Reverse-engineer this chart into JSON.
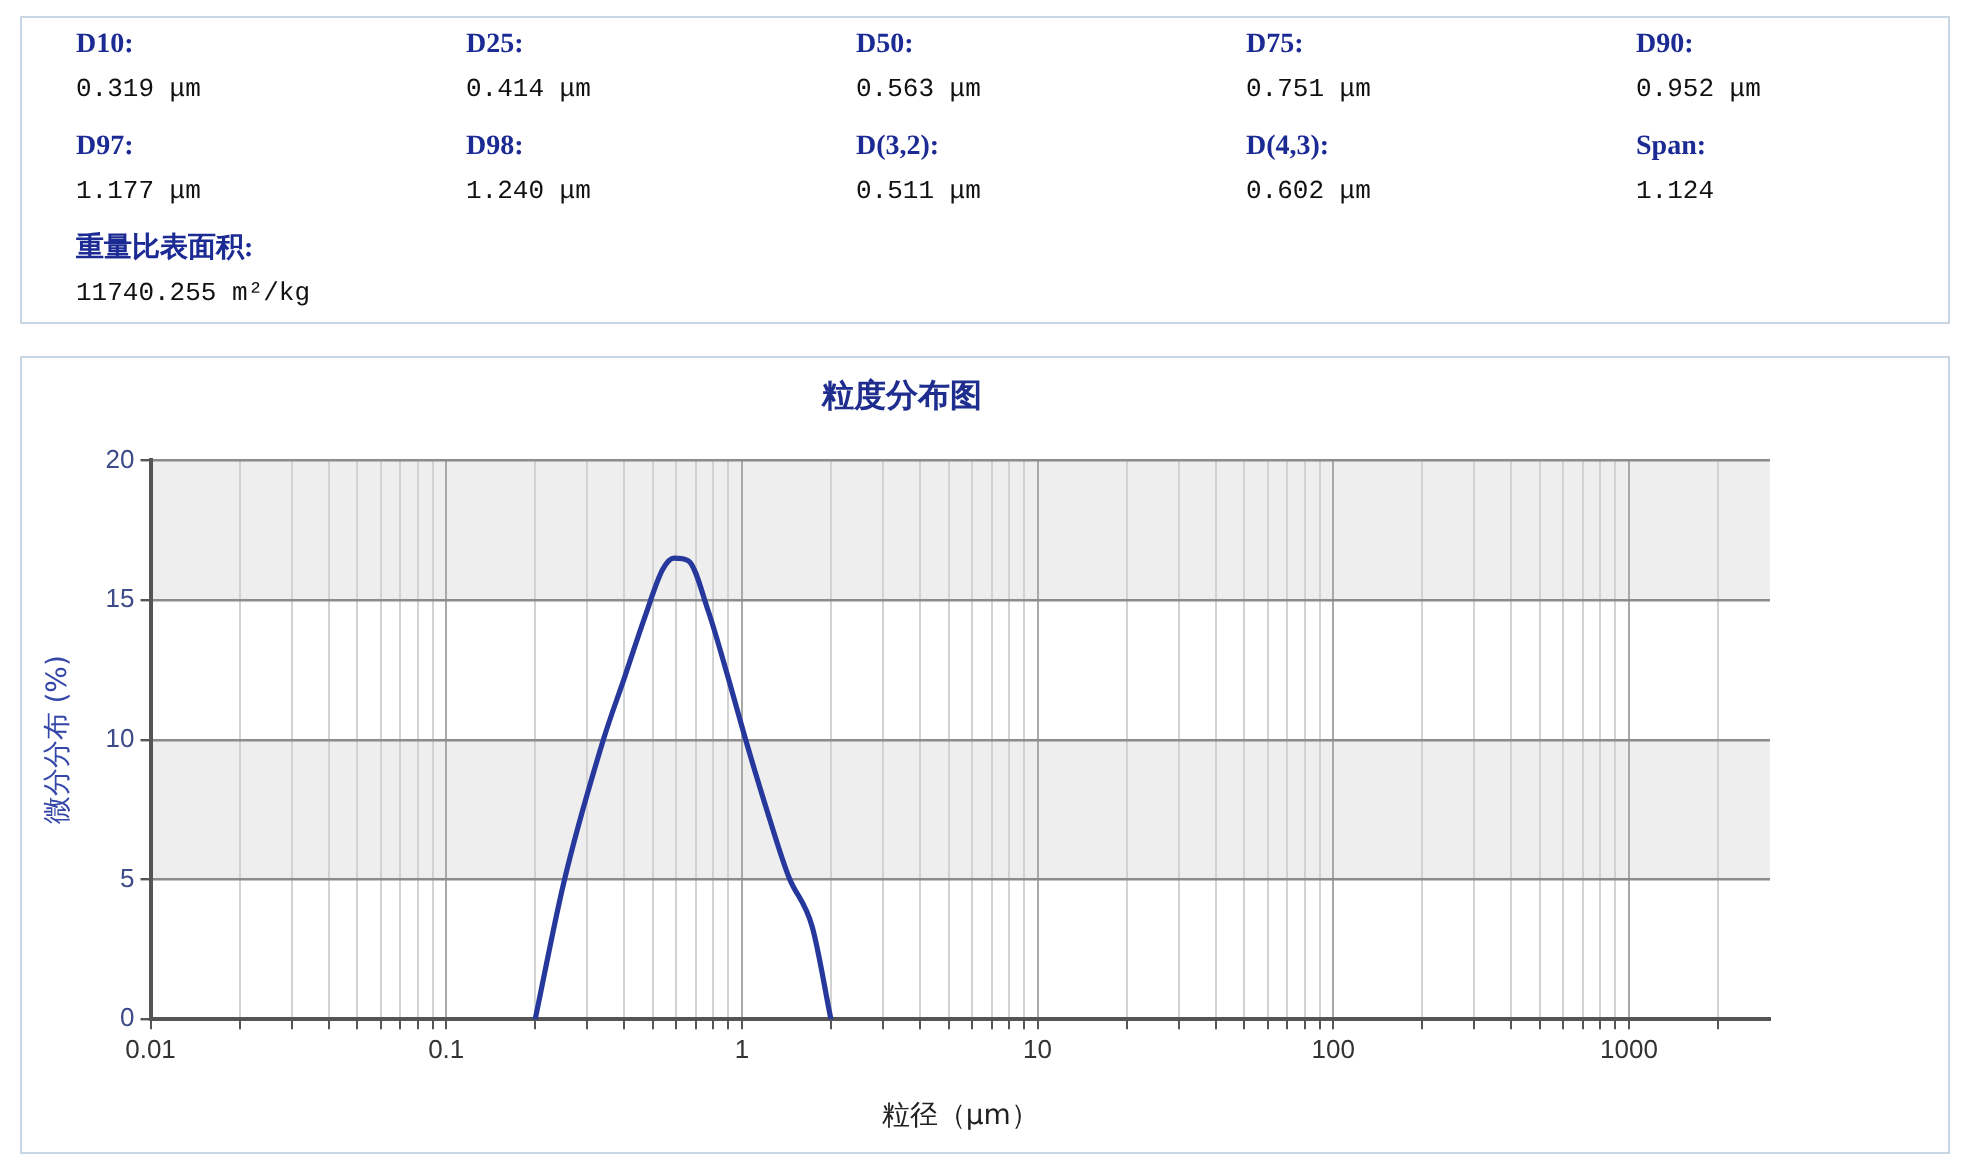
{
  "chart_data": [
    {
      "type": "other",
      "annotations": [
        "D10:",
        "0.319 μm",
        "D25:",
        "0.414 μm",
        "D50:",
        "0.563 μm",
        "D75:",
        "0.751 μm",
        "D90:",
        "0.952 μm",
        "D97:",
        "1.177 μm",
        "D98:",
        "1.240 μm",
        "D(3,2):",
        "0.511 μm",
        "D(4,3):",
        "0.602 μm",
        "Span:",
        "1.124",
        "重量比表面积:",
        "11740.255 m²/kg"
      ]
    },
    {
      "type": "line",
      "title": "粒度分布图",
      "xlabel": "粒径（μm）",
      "ylabel": "微分分布 (%)",
      "x": [
        0.2,
        0.25,
        0.34,
        0.4,
        0.47,
        0.54,
        0.59,
        0.66,
        0.77,
        0.9,
        1.03,
        1.23,
        1.44,
        1.73,
        2
      ],
      "values": [
        0,
        4.9,
        10,
        12.2,
        14.4,
        16.1,
        16.5,
        16.4,
        14.6,
        12.2,
        10,
        7.3,
        5.1,
        3.3,
        0
      ],
      "color": "#26389c",
      "marker": "none",
      "line_style": "solid",
      "log": "x",
      "grid": true,
      "legend": false,
      "xlim": [
        0.01,
        3000
      ],
      "xticks": [
        0.01,
        {
          "value": 0.02,
          "label": null
        },
        {
          "value": 0.03,
          "label": null
        },
        {
          "value": 0.04,
          "label": null
        },
        {
          "value": 0.05,
          "label": null
        },
        {
          "value": 0.06,
          "label": null
        },
        {
          "value": 0.07,
          "label": null
        },
        {
          "value": 0.08,
          "label": null
        },
        {
          "value": 0.09,
          "label": null
        },
        0.1,
        {
          "value": 0.2,
          "label": null
        },
        {
          "value": 0.3,
          "label": null
        },
        {
          "value": 0.4,
          "label": null
        },
        {
          "value": 0.5,
          "label": null
        },
        {
          "value": 0.6,
          "label": null
        },
        {
          "value": 0.7,
          "label": null
        },
        {
          "value": 0.8,
          "label": null
        },
        {
          "value": 0.9,
          "label": null
        },
        1,
        {
          "value": 2,
          "label": null
        },
        {
          "value": 3,
          "label": null
        },
        {
          "value": 4,
          "label": null
        },
        {
          "value": 5,
          "label": null
        },
        {
          "value": 6,
          "label": null
        },
        {
          "value": 7,
          "label": null
        },
        {
          "value": 8,
          "label": null
        },
        {
          "value": 9,
          "label": null
        },
        10,
        {
          "value": 20,
          "label": null
        },
        {
          "value": 30,
          "label": null
        },
        {
          "value": 40,
          "label": null
        },
        {
          "value": 50,
          "label": null
        },
        {
          "value": 60,
          "label": null
        },
        {
          "value": 70,
          "label": null
        },
        {
          "value": 80,
          "label": null
        },
        {
          "value": 90,
          "label": null
        },
        100,
        {
          "value": 200,
          "label": null
        },
        {
          "value": 300,
          "label": null
        },
        {
          "value": 400,
          "label": null
        },
        {
          "value": 500,
          "label": null
        },
        {
          "value": 600,
          "label": null
        },
        {
          "value": 700,
          "label": null
        },
        {
          "value": 800,
          "label": null
        },
        {
          "value": 900,
          "label": null
        },
        1000,
        {
          "value": 2000,
          "label": null
        }
      ],
      "ylim": [
        0,
        20
      ],
      "yticks": [
        0,
        5,
        10,
        15,
        20
      ],
      "bands": [
        {
          "axis": "y",
          "from": 15,
          "to": 20,
          "color": "#eeeeee"
        },
        {
          "axis": "y",
          "from": 5,
          "to": 10,
          "color": "#eeeeee"
        }
      ]
    }
  ]
}
